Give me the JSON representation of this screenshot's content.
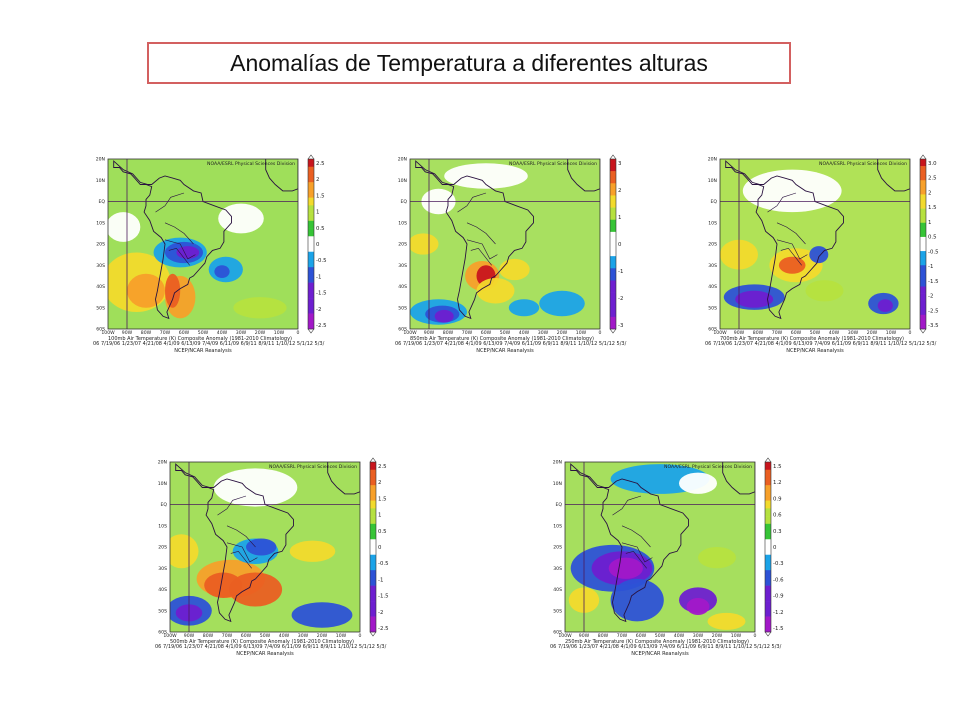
{
  "title": "Anomalías de Temperatura a diferentes alturas",
  "header": "NOAA/ESRL Physical Sciences Division",
  "dates_line": "06 7/19/06 1/23/07 4/21/08 4/1/09 6/13/09 7/4/09 6/11/09 6/9/11 8/9/11 1/10/12 5/1/12 5/3/",
  "source": "NCEP/NCAR Reanalysis",
  "lat_labels": [
    "20N",
    "10N",
    "EQ",
    "10S",
    "20S",
    "30S",
    "40S",
    "50S",
    "60S"
  ],
  "lon_labels": [
    "100W",
    "90W",
    "80W",
    "70W",
    "60W",
    "50W",
    "40W",
    "30W",
    "20W",
    "10W",
    "0"
  ],
  "palette": {
    "-3": "#a218c8",
    "-2": "#6e1fd0",
    "-1": "#2d52d6",
    "-0.5": "#1ba3e8",
    "0": "#ffffff",
    "0.5": "#36c436",
    "1": "#b6e13f",
    "1.5": "#f2da2c",
    "2": "#f7a02a",
    "2.5": "#ea5f22",
    "3": "#c8151d"
  },
  "panels": [
    {
      "id": "p100",
      "level": "100mb",
      "caption": "100mb Air Temperature (K) Composite Anomaly (1981-2010 Climatology)",
      "colorbar": [
        "2.5",
        "2",
        "1.5",
        "1",
        "0.5",
        "0",
        "-0.5",
        "-1",
        "-1.5",
        "-2",
        "-2.5"
      ],
      "background": "#9fdf5a",
      "blobs": [
        {
          "lat": -12,
          "lon": -92,
          "rx": 9,
          "ry": 7,
          "class": "0"
        },
        {
          "lat": -8,
          "lon": -30,
          "rx": 12,
          "ry": 7,
          "class": "0"
        },
        {
          "lat": -38,
          "lon": -85,
          "rx": 18,
          "ry": 14,
          "class": "1.5"
        },
        {
          "lat": -42,
          "lon": -80,
          "rx": 10,
          "ry": 8,
          "class": "2"
        },
        {
          "lat": -45,
          "lon": -62,
          "rx": 8,
          "ry": 10,
          "class": "2"
        },
        {
          "lat": -42,
          "lon": -66,
          "rx": 4,
          "ry": 8,
          "class": "2.5"
        },
        {
          "lat": -24,
          "lon": -62,
          "rx": 14,
          "ry": 7,
          "class": "-0.5"
        },
        {
          "lat": -24,
          "lon": -60,
          "rx": 10,
          "ry": 5,
          "class": "-1"
        },
        {
          "lat": -24,
          "lon": -58,
          "rx": 6,
          "ry": 3,
          "class": "-2"
        },
        {
          "lat": -32,
          "lon": -38,
          "rx": 9,
          "ry": 6,
          "class": "-0.5"
        },
        {
          "lat": -33,
          "lon": -40,
          "rx": 4,
          "ry": 3,
          "class": "-1"
        },
        {
          "lat": -50,
          "lon": -20,
          "rx": 14,
          "ry": 5,
          "class": "1"
        }
      ]
    },
    {
      "id": "p850",
      "level": "850mb",
      "caption": "850mb Air Temperature (K) Composite Anomaly (1981-2010 Climatology)",
      "colorbar": [
        "3",
        "2",
        "1",
        "0",
        "-1",
        "-2",
        "-3"
      ],
      "background": "#a8e060",
      "blobs": [
        {
          "lat": 12,
          "lon": -60,
          "rx": 22,
          "ry": 6,
          "class": "0"
        },
        {
          "lat": 0,
          "lon": -85,
          "rx": 9,
          "ry": 6,
          "class": "0"
        },
        {
          "lat": -20,
          "lon": -93,
          "rx": 8,
          "ry": 5,
          "class": "1.5"
        },
        {
          "lat": -35,
          "lon": -62,
          "rx": 9,
          "ry": 7,
          "class": "2"
        },
        {
          "lat": -35,
          "lon": -60,
          "rx": 5,
          "ry": 5,
          "class": "3"
        },
        {
          "lat": -42,
          "lon": -55,
          "rx": 10,
          "ry": 6,
          "class": "1.5"
        },
        {
          "lat": -32,
          "lon": -45,
          "rx": 8,
          "ry": 5,
          "class": "1.5"
        },
        {
          "lat": -52,
          "lon": -85,
          "rx": 15,
          "ry": 6,
          "class": "-0.5"
        },
        {
          "lat": -53,
          "lon": -83,
          "rx": 9,
          "ry": 4,
          "class": "-1"
        },
        {
          "lat": -54,
          "lon": -82,
          "rx": 5,
          "ry": 3,
          "class": "-2"
        },
        {
          "lat": -48,
          "lon": -20,
          "rx": 12,
          "ry": 6,
          "class": "-0.5"
        },
        {
          "lat": -50,
          "lon": -40,
          "rx": 8,
          "ry": 4,
          "class": "-0.5"
        }
      ]
    },
    {
      "id": "p700",
      "level": "700mb",
      "caption": "700mb Air Temperature (K) Composite Anomaly (1981-2010 Climatology)",
      "colorbar": [
        "3.0",
        "2.5",
        "2",
        "1.5",
        "1",
        "0.5",
        "-0.5",
        "-1",
        "-1.5",
        "-2",
        "-2.5",
        "-3.5"
      ],
      "background": "#b0e257",
      "blobs": [
        {
          "lat": 5,
          "lon": -62,
          "rx": 26,
          "ry": 10,
          "class": "0"
        },
        {
          "lat": -30,
          "lon": -60,
          "rx": 14,
          "ry": 8,
          "class": "1.5"
        },
        {
          "lat": -30,
          "lon": -62,
          "rx": 7,
          "ry": 4,
          "class": "2.5"
        },
        {
          "lat": -25,
          "lon": -90,
          "rx": 10,
          "ry": 7,
          "class": "1.5"
        },
        {
          "lat": -25,
          "lon": -48,
          "rx": 5,
          "ry": 4,
          "class": "-1"
        },
        {
          "lat": -45,
          "lon": -82,
          "rx": 16,
          "ry": 6,
          "class": "-1"
        },
        {
          "lat": -46,
          "lon": -82,
          "rx": 10,
          "ry": 4,
          "class": "-2"
        },
        {
          "lat": -48,
          "lon": -14,
          "rx": 8,
          "ry": 5,
          "class": "-1"
        },
        {
          "lat": -49,
          "lon": -13,
          "rx": 4,
          "ry": 3,
          "class": "-2"
        },
        {
          "lat": -42,
          "lon": -45,
          "rx": 10,
          "ry": 5,
          "class": "1"
        }
      ]
    },
    {
      "id": "p500",
      "level": "500mb",
      "caption": "500mb Air Temperature (K) Composite Anomaly (1981-2010 Climatology)",
      "colorbar": [
        "2.5",
        "2",
        "1.5",
        "1",
        "0.5",
        "0",
        "-0.5",
        "-1",
        "-1.5",
        "-2",
        "-2.5"
      ],
      "background": "#a4df5c",
      "blobs": [
        {
          "lat": 8,
          "lon": -55,
          "rx": 22,
          "ry": 9,
          "class": "0"
        },
        {
          "lat": -22,
          "lon": -94,
          "rx": 9,
          "ry": 8,
          "class": "1.5"
        },
        {
          "lat": -35,
          "lon": -68,
          "rx": 18,
          "ry": 9,
          "class": "2"
        },
        {
          "lat": -40,
          "lon": -55,
          "rx": 14,
          "ry": 8,
          "class": "2.5"
        },
        {
          "lat": -38,
          "lon": -72,
          "rx": 10,
          "ry": 6,
          "class": "2.5"
        },
        {
          "lat": -22,
          "lon": -55,
          "rx": 12,
          "ry": 6,
          "class": "-0.5"
        },
        {
          "lat": -20,
          "lon": -52,
          "rx": 8,
          "ry": 4,
          "class": "-1"
        },
        {
          "lat": -50,
          "lon": -90,
          "rx": 12,
          "ry": 7,
          "class": "-1"
        },
        {
          "lat": -51,
          "lon": -90,
          "rx": 7,
          "ry": 4,
          "class": "-2"
        },
        {
          "lat": -52,
          "lon": -20,
          "rx": 16,
          "ry": 6,
          "class": "-1"
        },
        {
          "lat": -22,
          "lon": -25,
          "rx": 12,
          "ry": 5,
          "class": "1.5"
        }
      ]
    },
    {
      "id": "p250",
      "level": "250mb",
      "caption": "250mb Air Temperature (K) Composite Anomaly (1981-2010 Climatology)",
      "colorbar": [
        "1.5",
        "1.2",
        "0.9",
        "0.6",
        "0.3",
        "0",
        "-0.3",
        "-0.6",
        "-0.9",
        "-1.2",
        "-1.5"
      ],
      "background": "#a6df5e",
      "blobs": [
        {
          "lat": 12,
          "lon": -50,
          "rx": 26,
          "ry": 7,
          "class": "-0.5"
        },
        {
          "lat": 10,
          "lon": -30,
          "rx": 10,
          "ry": 5,
          "class": "0"
        },
        {
          "lat": -30,
          "lon": -75,
          "rx": 22,
          "ry": 11,
          "class": "-1"
        },
        {
          "lat": -30,
          "lon": -70,
          "rx": 16,
          "ry": 8,
          "class": "-2"
        },
        {
          "lat": -30,
          "lon": -68,
          "rx": 9,
          "ry": 5,
          "class": "-3"
        },
        {
          "lat": -45,
          "lon": -62,
          "rx": 14,
          "ry": 10,
          "class": "-1"
        },
        {
          "lat": -45,
          "lon": -30,
          "rx": 10,
          "ry": 6,
          "class": "-2"
        },
        {
          "lat": -48,
          "lon": -30,
          "rx": 6,
          "ry": 4,
          "class": "-3"
        },
        {
          "lat": -45,
          "lon": -90,
          "rx": 8,
          "ry": 6,
          "class": "1.5"
        },
        {
          "lat": -25,
          "lon": -20,
          "rx": 10,
          "ry": 5,
          "class": "1"
        },
        {
          "lat": -55,
          "lon": -15,
          "rx": 10,
          "ry": 4,
          "class": "1.5"
        }
      ]
    }
  ]
}
